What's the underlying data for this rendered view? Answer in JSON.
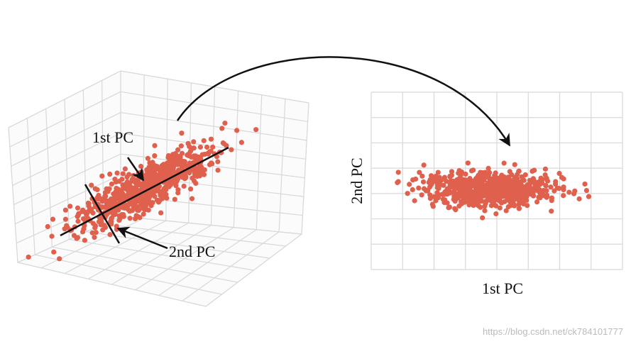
{
  "left_panel": {
    "first_pc_label": "1st PC",
    "second_pc_label": "2nd PC"
  },
  "right_panel": {
    "x_label": "1st PC",
    "y_label": "2nd PC"
  },
  "watermark": "https://blog.csdn.net/ck784101777"
}
